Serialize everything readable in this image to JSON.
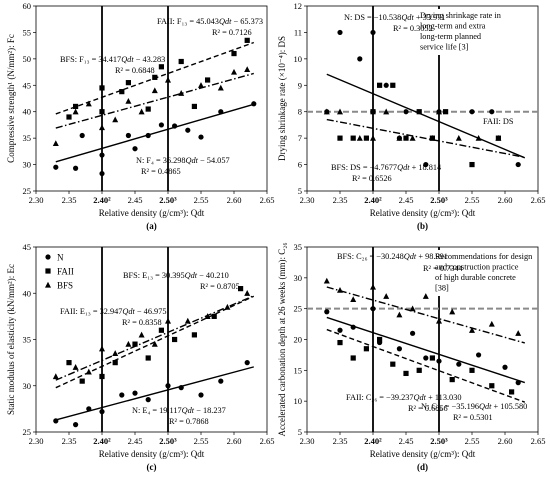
{
  "colors": {
    "ink": "#000000",
    "dashed_gray": "#8a8a8a"
  },
  "chart_data": [
    {
      "id": "a",
      "type": "scatter",
      "panel_label": "(a)",
      "xlabel": "Relative density (g/cm³): Qdt",
      "ylabel": "Compressive strength¹ (N/mm²): Fc",
      "xlim": [
        2.3,
        2.65
      ],
      "ylim": [
        25,
        60
      ],
      "xticks": [
        2.3,
        2.35,
        2.4,
        2.45,
        2.5,
        2.55,
        2.6,
        2.65
      ],
      "yticks": [
        25,
        30,
        35,
        40,
        45,
        50,
        55,
        60
      ],
      "xtick_labels": [
        "2.30",
        "2.35",
        "2.40²",
        "2.45",
        "2.50³",
        "2.55",
        "2.60",
        "2.65"
      ],
      "vlines": [
        2.4,
        2.5
      ],
      "series": [
        {
          "name": "N",
          "marker": "circle",
          "points": [
            [
              2.33,
              29.5
            ],
            [
              2.36,
              29.3
            ],
            [
              2.37,
              35.5
            ],
            [
              2.4,
              28.3
            ],
            [
              2.4,
              31.8
            ],
            [
              2.44,
              35.5
            ],
            [
              2.45,
              33.0
            ],
            [
              2.47,
              35.5
            ],
            [
              2.49,
              37.5
            ],
            [
              2.51,
              37.3
            ],
            [
              2.53,
              36.5
            ],
            [
              2.55,
              35.2
            ],
            [
              2.58,
              40.0
            ],
            [
              2.63,
              41.5
            ]
          ],
          "fit": {
            "label": "N: F₄ = 36.298Qdt − 54.057",
            "r2": "R² = 0.4865",
            "slope": 36.298,
            "intercept": -54.057,
            "style": "solid",
            "x_range": [
              2.33,
              2.63
            ]
          }
        },
        {
          "name": "FAII",
          "marker": "square",
          "points": [
            [
              2.35,
              39.0
            ],
            [
              2.36,
              41.0
            ],
            [
              2.4,
              44.5
            ],
            [
              2.4,
              40.0
            ],
            [
              2.43,
              43.8
            ],
            [
              2.44,
              45.5
            ],
            [
              2.47,
              40.5
            ],
            [
              2.48,
              46.5
            ],
            [
              2.49,
              48.5
            ],
            [
              2.52,
              49.5
            ],
            [
              2.54,
              41.0
            ],
            [
              2.56,
              46.0
            ],
            [
              2.6,
              51.0
            ],
            [
              2.62,
              53.5
            ]
          ],
          "fit": {
            "label": "FAII: F₁₃ = 45.043Qdt − 65.373",
            "r2": "R² = 0.7126",
            "slope": 45.043,
            "intercept": -65.373,
            "style": "dashed",
            "x_range": [
              2.33,
              2.63
            ]
          }
        },
        {
          "name": "BFS",
          "marker": "triangle",
          "points": [
            [
              2.33,
              34.0
            ],
            [
              2.36,
              40.0
            ],
            [
              2.38,
              41.5
            ],
            [
              2.4,
              37.0
            ],
            [
              2.42,
              38.5
            ],
            [
              2.44,
              42.0
            ],
            [
              2.46,
              40.0
            ],
            [
              2.48,
              44.0
            ],
            [
              2.5,
              46.0
            ],
            [
              2.52,
              43.5
            ],
            [
              2.55,
              45.0
            ],
            [
              2.58,
              44.5
            ],
            [
              2.6,
              47.5
            ],
            [
              2.62,
              48.0
            ]
          ],
          "fit": {
            "label": "BFS: F₁₃ = 34.417Qdt − 43.283",
            "r2": "R² = 0.6848",
            "slope": 34.417,
            "intercept": -43.283,
            "style": "dashdot",
            "x_range": [
              2.33,
              2.63
            ]
          }
        }
      ]
    },
    {
      "id": "b",
      "type": "scatter",
      "panel_label": "(b)",
      "xlabel": "Relative density (g/cm³): Qdt",
      "ylabel": "Drying shrinkage rate (×10⁻⁴): DS",
      "xlim": [
        2.3,
        2.65
      ],
      "ylim": [
        5,
        12
      ],
      "xticks": [
        2.3,
        2.35,
        2.4,
        2.45,
        2.5,
        2.55,
        2.6,
        2.65
      ],
      "yticks": [
        5,
        6,
        7,
        8,
        9,
        10,
        11,
        12
      ],
      "xtick_labels": [
        "2.30",
        "2.35",
        "2.40²",
        "2.45",
        "2.50³",
        "2.55",
        "2.60",
        "2.65"
      ],
      "vlines": [
        2.4,
        2.5
      ],
      "hline": {
        "y": 8.0,
        "label": "FAII: DS"
      },
      "annotation": "Drying shrinkage rate in long-term and extra long-term planned service life [3]",
      "series": [
        {
          "name": "N",
          "marker": "circle",
          "points": [
            [
              2.33,
              8.0
            ],
            [
              2.35,
              11.0
            ],
            [
              2.38,
              10.0
            ],
            [
              2.4,
              11.0
            ],
            [
              2.42,
              9.0
            ],
            [
              2.45,
              8.0
            ],
            [
              2.48,
              6.0
            ],
            [
              2.5,
              8.0
            ],
            [
              2.55,
              8.0
            ],
            [
              2.58,
              8.0
            ],
            [
              2.62,
              6.0
            ],
            [
              2.44,
              7.0
            ]
          ],
          "fit": {
            "label": "N: DS = −10.538Qdt + 33.971",
            "r2": "R² = 0.3052",
            "slope": -10.538,
            "intercept": 33.971,
            "style": "solid",
            "x_range": [
              2.33,
              2.63
            ]
          }
        },
        {
          "name": "FAII",
          "marker": "square",
          "points": [
            [
              2.35,
              7.0
            ],
            [
              2.37,
              7.0
            ],
            [
              2.39,
              7.0
            ],
            [
              2.4,
              8.0
            ],
            [
              2.41,
              9.0
            ],
            [
              2.43,
              9.0
            ],
            [
              2.45,
              7.0
            ],
            [
              2.47,
              8.0
            ],
            [
              2.49,
              7.0
            ],
            [
              2.51,
              8.0
            ],
            [
              2.55,
              6.0
            ],
            [
              2.59,
              7.0
            ]
          ],
          "fit": {
            "label": "FAII: DS",
            "r2": "",
            "slope": 0,
            "intercept": 8.0,
            "style": "none",
            "x_range": [
              2.33,
              2.63
            ]
          }
        },
        {
          "name": "BFS",
          "marker": "triangle",
          "points": [
            [
              2.33,
              8.0
            ],
            [
              2.35,
              8.0
            ],
            [
              2.38,
              7.0
            ],
            [
              2.4,
              7.0
            ],
            [
              2.42,
              8.0
            ],
            [
              2.44,
              7.0
            ],
            [
              2.46,
              7.0
            ],
            [
              2.49,
              7.0
            ],
            [
              2.5,
              8.0
            ],
            [
              2.53,
              7.0
            ],
            [
              2.56,
              7.0
            ],
            [
              2.59,
              7.0
            ]
          ],
          "fit": {
            "label": "BFS: DS = −4.7677Qdt + 18.814",
            "r2": "R² = 0.6526",
            "slope": -4.7677,
            "intercept": 18.814,
            "style": "dashdot",
            "x_range": [
              2.33,
              2.63
            ]
          }
        }
      ]
    },
    {
      "id": "c",
      "type": "scatter",
      "panel_label": "(c)",
      "xlabel": "Relative density (g/cm³): Qdt",
      "ylabel": "Static modulus of elasticity (kN/mm²): Ec",
      "xlim": [
        2.3,
        2.65
      ],
      "ylim": [
        25,
        45
      ],
      "xticks": [
        2.3,
        2.35,
        2.4,
        2.45,
        2.5,
        2.55,
        2.6,
        2.65
      ],
      "yticks": [
        25,
        30,
        35,
        40,
        45
      ],
      "xtick_labels": [
        "2.30",
        "2.35",
        "2.40²",
        "2.45",
        "2.50³",
        "2.55",
        "2.60",
        "2.65"
      ],
      "vlines": [
        2.4,
        2.5
      ],
      "legend": [
        "N",
        "FAII",
        "BFS"
      ],
      "series": [
        {
          "name": "N",
          "marker": "circle",
          "points": [
            [
              2.33,
              26.2
            ],
            [
              2.36,
              25.8
            ],
            [
              2.38,
              27.5
            ],
            [
              2.4,
              27.2
            ],
            [
              2.43,
              29.0
            ],
            [
              2.45,
              29.2
            ],
            [
              2.47,
              28.5
            ],
            [
              2.5,
              30.0
            ],
            [
              2.52,
              29.8
            ],
            [
              2.55,
              29.0
            ],
            [
              2.58,
              30.5
            ],
            [
              2.62,
              32.5
            ]
          ],
          "fit": {
            "label": "N: E₄ = 19.117Qdt − 18.237",
            "r2": "R² = 0.7868",
            "slope": 19.117,
            "intercept": -18.237,
            "style": "solid",
            "x_range": [
              2.33,
              2.63
            ]
          }
        },
        {
          "name": "FAII",
          "marker": "square",
          "points": [
            [
              2.35,
              32.5
            ],
            [
              2.37,
              30.5
            ],
            [
              2.4,
              31.0
            ],
            [
              2.42,
              32.5
            ],
            [
              2.45,
              34.5
            ],
            [
              2.47,
              33.0
            ],
            [
              2.49,
              36.0
            ],
            [
              2.51,
              35.0
            ],
            [
              2.54,
              35.5
            ],
            [
              2.57,
              37.5
            ],
            [
              2.61,
              40.5
            ]
          ],
          "fit": {
            "label": "FAII: E₁₃ = 32.947Qdt − 46.975",
            "r2": "R² = 0.8358",
            "slope": 32.947,
            "intercept": -46.975,
            "style": "dashed",
            "x_range": [
              2.33,
              2.63
            ]
          }
        },
        {
          "name": "BFS",
          "marker": "triangle",
          "points": [
            [
              2.33,
              31.0
            ],
            [
              2.36,
              32.0
            ],
            [
              2.38,
              31.5
            ],
            [
              2.4,
              34.0
            ],
            [
              2.42,
              33.5
            ],
            [
              2.44,
              34.5
            ],
            [
              2.46,
              35.5
            ],
            [
              2.48,
              34.5
            ],
            [
              2.5,
              37.0
            ],
            [
              2.53,
              37.0
            ],
            [
              2.56,
              37.5
            ],
            [
              2.59,
              38.5
            ],
            [
              2.62,
              40.0
            ]
          ],
          "fit": {
            "label": "BFS: E₁₃ = 30.395Qdt − 40.210",
            "r2": "R² = 0.8705",
            "slope": 30.395,
            "intercept": -40.21,
            "style": "dashdot",
            "x_range": [
              2.33,
              2.63
            ]
          }
        }
      ]
    },
    {
      "id": "d",
      "type": "scatter",
      "panel_label": "(d)",
      "xlabel": "Relative density (g/cm³): Qdt",
      "ylabel": "Accelerated carbonation depth at 26 weeks (mm): C₂₆",
      "xlim": [
        2.3,
        2.65
      ],
      "ylim": [
        5,
        35
      ],
      "xticks": [
        2.3,
        2.35,
        2.4,
        2.45,
        2.5,
        2.55,
        2.6,
        2.65
      ],
      "yticks": [
        5,
        10,
        15,
        20,
        25,
        30,
        35
      ],
      "xtick_labels": [
        "2.30",
        "2.35",
        "2.40²",
        "2.45",
        "2.50³",
        "2.55",
        "2.60",
        "2.65"
      ],
      "vlines": [
        2.4,
        2.5
      ],
      "hline": {
        "y": 25.0,
        "label": ""
      },
      "annotation": "Recommendations for design and construction practice of high durable concrete [38]",
      "series": [
        {
          "name": "N",
          "marker": "circle",
          "points": [
            [
              2.33,
              24.5
            ],
            [
              2.35,
              21.5
            ],
            [
              2.37,
              22.0
            ],
            [
              2.4,
              25.0
            ],
            [
              2.41,
              19.5
            ],
            [
              2.44,
              18.5
            ],
            [
              2.46,
              21.0
            ],
            [
              2.48,
              17.0
            ],
            [
              2.5,
              16.5
            ],
            [
              2.53,
              16.0
            ],
            [
              2.56,
              17.5
            ],
            [
              2.6,
              15.5
            ],
            [
              2.62,
              13.0
            ]
          ],
          "fit": {
            "label": "N: C₂₆ = −35.196Qdt + 105.580",
            "r2": "R² = 0.5301",
            "slope": -35.196,
            "intercept": 105.58,
            "style": "solid",
            "x_range": [
              2.33,
              2.63
            ]
          }
        },
        {
          "name": "FAII",
          "marker": "square",
          "points": [
            [
              2.35,
              19.5
            ],
            [
              2.37,
              17.0
            ],
            [
              2.39,
              18.5
            ],
            [
              2.41,
              20.0
            ],
            [
              2.43,
              16.0
            ],
            [
              2.45,
              14.5
            ],
            [
              2.47,
              15.0
            ],
            [
              2.49,
              17.0
            ],
            [
              2.52,
              13.5
            ],
            [
              2.55,
              15.0
            ],
            [
              2.58,
              12.5
            ],
            [
              2.61,
              11.5
            ]
          ],
          "fit": {
            "label": "FAII: C₂₆ = −39.237Qdt + 113.030",
            "r2": "R² = 0.6856",
            "slope": -39.237,
            "intercept": 113.03,
            "style": "dashed",
            "x_range": [
              2.33,
              2.63
            ]
          }
        },
        {
          "name": "BFS",
          "marker": "triangle",
          "points": [
            [
              2.33,
              29.5
            ],
            [
              2.35,
              28.0
            ],
            [
              2.37,
              26.5
            ],
            [
              2.4,
              28.5
            ],
            [
              2.42,
              27.0
            ],
            [
              2.44,
              24.0
            ],
            [
              2.46,
              25.0
            ],
            [
              2.48,
              27.0
            ],
            [
              2.5,
              23.0
            ],
            [
              2.52,
              24.5
            ],
            [
              2.55,
              21.5
            ],
            [
              2.58,
              22.5
            ],
            [
              2.62,
              21.0
            ]
          ],
          "fit": {
            "label": "BFS: C₂₆ = −30.248Qdt + 98.991",
            "r2": "R² = 0.7344",
            "slope": -30.248,
            "intercept": 98.991,
            "style": "dashdot",
            "x_range": [
              2.33,
              2.63
            ]
          }
        }
      ]
    }
  ]
}
